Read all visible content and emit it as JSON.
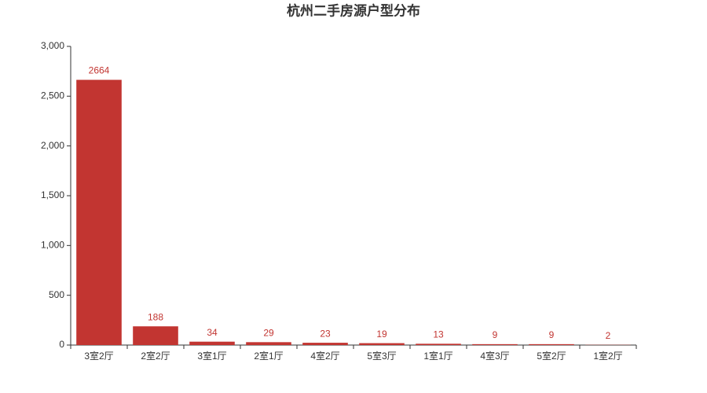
{
  "chart_data": {
    "type": "bar",
    "title": "杭州二手房源户型分布",
    "categories": [
      "3室2厅",
      "2室2厅",
      "3室1厅",
      "2室1厅",
      "4室2厅",
      "5室3厅",
      "1室1厅",
      "4室3厅",
      "5室2厅",
      "1室2厅"
    ],
    "values": [
      2664,
      188,
      34,
      29,
      23,
      19,
      13,
      9,
      9,
      2
    ],
    "color": "#c23531",
    "ylim": [
      0,
      3000
    ],
    "yticks": [
      0,
      500,
      {
        "value": 1000,
        "label": "1,000"
      },
      {
        "value": 1500,
        "label": "1,500"
      },
      {
        "value": 2000,
        "label": "2,000"
      },
      {
        "value": 2500,
        "label": "2,500"
      },
      {
        "value": 3000,
        "label": "3,000"
      }
    ],
    "grid": false
  }
}
